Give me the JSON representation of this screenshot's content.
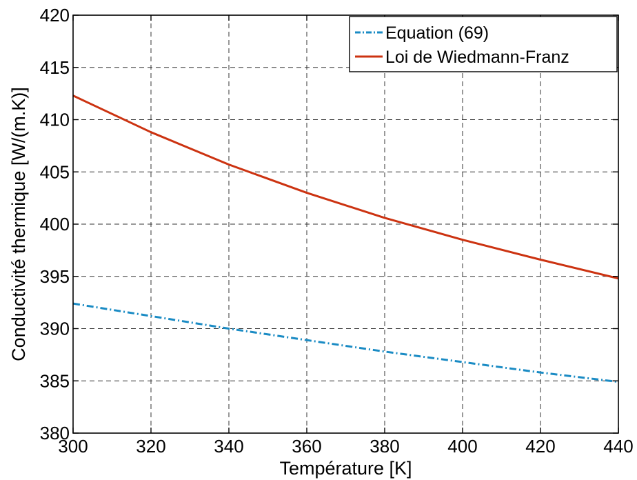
{
  "chart_data": {
    "type": "line",
    "title": "",
    "xlabel": "Température [K]",
    "ylabel": "Conductivité thermique [W/(m.K)]",
    "xlim": [
      300,
      440
    ],
    "ylim": [
      380,
      420
    ],
    "xticks": [
      300,
      320,
      340,
      360,
      380,
      400,
      420,
      440
    ],
    "yticks": [
      380,
      385,
      390,
      395,
      400,
      405,
      410,
      415,
      420
    ],
    "grid": true,
    "grid_style": "dashed",
    "legend_position": "top-right",
    "x": [
      300,
      320,
      340,
      360,
      380,
      400,
      420,
      440
    ],
    "series": [
      {
        "name": "Equation (69)",
        "color": "#1a8bc4",
        "line_style": "dash-dot",
        "values": [
          392.4,
          391.2,
          390.0,
          388.9,
          387.8,
          386.8,
          385.8,
          384.9
        ]
      },
      {
        "name": "Loi de Wiedmann-Franz",
        "color": "#cc3311",
        "line_style": "solid",
        "values": [
          412.3,
          408.8,
          405.7,
          403.0,
          400.6,
          398.5,
          396.6,
          394.8
        ]
      }
    ]
  }
}
